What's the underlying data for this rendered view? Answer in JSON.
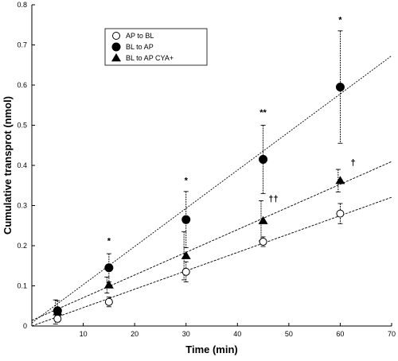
{
  "chart_data": {
    "type": "scatter",
    "xlabel": "Time (min)",
    "ylabel": "Cumulative transprot (nmol)",
    "xlim": [
      0,
      70
    ],
    "ylim": [
      0,
      0.8
    ],
    "x_ticks": [
      10,
      20,
      30,
      40,
      50,
      60,
      70
    ],
    "y_ticks": [
      0,
      0.1,
      0.2,
      0.3,
      0.4,
      0.5,
      0.6,
      0.7,
      0.8
    ],
    "y_tick_labels": [
      "0",
      "0.1",
      "0.2",
      "0.3",
      "0.4",
      "0.5",
      "0.6",
      "0.7",
      "0.8"
    ],
    "legend_position": "top-left",
    "series": [
      {
        "name": "AP to BL",
        "marker": "open-circle",
        "x": [
          5,
          15,
          30,
          45,
          60
        ],
        "y": [
          0.018,
          0.06,
          0.135,
          0.21,
          0.28
        ],
        "err": [
          0.008,
          0.012,
          0.025,
          0.012,
          0.025
        ],
        "fit": {
          "slope": 0.00458,
          "intercept": 0.0
        }
      },
      {
        "name": "BL to AP",
        "marker": "filled-circle",
        "x": [
          5,
          15,
          30,
          45,
          60
        ],
        "y": [
          0.038,
          0.145,
          0.265,
          0.415,
          0.595
        ],
        "err": [
          0.025,
          0.035,
          0.07,
          0.085,
          0.14
        ],
        "fit": {
          "slope": 0.0095,
          "intercept": 0.008
        }
      },
      {
        "name": "BL to AP  CYA+",
        "marker": "filled-triangle",
        "x": [
          5,
          15,
          30,
          45,
          60
        ],
        "y": [
          0.035,
          0.102,
          0.175,
          0.262,
          0.362
        ],
        "err": [
          0.03,
          0.02,
          0.06,
          0.05,
          0.028
        ],
        "fit": {
          "slope": 0.00565,
          "intercept": 0.014
        }
      }
    ],
    "annotations": [
      {
        "text": "*",
        "x": 15,
        "y": 0.205
      },
      {
        "text": "*",
        "x": 30,
        "y": 0.355
      },
      {
        "text": "**",
        "x": 45,
        "y": 0.525
      },
      {
        "text": "*",
        "x": 60,
        "y": 0.755
      },
      {
        "text": "††",
        "x": 47,
        "y": 0.31
      },
      {
        "text": "†",
        "x": 62.5,
        "y": 0.4
      }
    ]
  }
}
